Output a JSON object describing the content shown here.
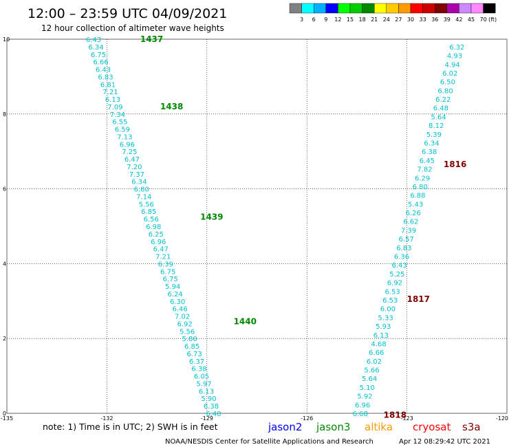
{
  "header": {
    "title": "12:00 – 23:59 UTC 04/09/2021",
    "subtitle": "12 hour collection of altimeter wave heights"
  },
  "legend": {
    "labels": [
      "3",
      "6",
      "9",
      "12",
      "15",
      "18",
      "21",
      "24",
      "27",
      "30",
      "33",
      "36",
      "39",
      "42",
      "45",
      "70"
    ],
    "unit": "(ft)",
    "colors": [
      "#808080",
      "#00ffff",
      "#00b0ff",
      "#0000ff",
      "#00ff00",
      "#00cc00",
      "#008800",
      "#ffff00",
      "#ffcc00",
      "#ff9900",
      "#ff0000",
      "#cc0000",
      "#800000",
      "#aa00aa",
      "#cc88ff",
      "#ff88ff",
      "#000000"
    ]
  },
  "footer": {
    "note": "note:  1) Time is in UTC; 2) SWH is in feet",
    "satellites": [
      {
        "name": "jason2",
        "color": "#0000ff"
      },
      {
        "name": "jason3",
        "color": "#008800"
      },
      {
        "name": "altika",
        "color": "#ff9900"
      },
      {
        "name": "cryosat",
        "color": "#ff0000"
      },
      {
        "name": "s3a",
        "color": "#800000"
      }
    ],
    "credit": "NOAA/NESDIS Center for Satellite Applications and Research",
    "timestamp": "Apr 12 08:29:42 UTC 2021"
  },
  "chart_data": {
    "type": "scatter",
    "xlim": [
      -135,
      -120
    ],
    "ylim": [
      0,
      10
    ],
    "x_ticks": [
      "-135",
      "-132",
      "-129",
      "-126",
      "-123",
      "-120"
    ],
    "y_ticks": [
      "0",
      "2",
      "4",
      "6",
      "8",
      "10"
    ],
    "grid": true,
    "value_color": "#00bfcf",
    "track1": {
      "satellite": "jason3",
      "start": [
        -132.4,
        10.0
      ],
      "end": [
        -128.8,
        0.0
      ],
      "values": [
        "6.43",
        "6.34",
        "6.75",
        "6.66",
        "6.43",
        "6.83",
        "6.81",
        "7.21",
        "6.13",
        "7.09",
        "7.34",
        "6.55",
        "6.59",
        "7.13",
        "6.96",
        "7.25",
        "6.47",
        "7.20",
        "7.37",
        "6.34",
        "6.80",
        "7.14",
        "5.56",
        "6.85",
        "6.56",
        "6.98",
        "6.25",
        "6.96",
        "6.47",
        "7.21",
        "6.39",
        "6.75",
        "6.75",
        "5.94",
        "6.24",
        "6.30",
        "6.46",
        "7.02",
        "6.92",
        "5.56",
        "5.80",
        "6.85",
        "6.73",
        "6.37",
        "6.38",
        "6.05",
        "5.97",
        "6.13",
        "5.90",
        "6.38",
        "6.40"
      ]
    },
    "track2": {
      "satellite": "s3a",
      "start": [
        -121.5,
        9.8
      ],
      "end": [
        -124.4,
        0.0
      ],
      "values": [
        "6.32",
        "4.93",
        "4.94",
        "6.02",
        "6.50",
        "6.80",
        "6.22",
        "6.48",
        "5.64",
        "8.12",
        "5.39",
        "6.34",
        "6.38",
        "6.45",
        "7.82",
        "6.29",
        "6.80",
        "6.88",
        "5.43",
        "6.26",
        "6.62",
        "7.39",
        "6.57",
        "6.83",
        "6.36",
        "6.43",
        "5.25",
        "6.92",
        "6.53",
        "6.53",
        "6.00",
        "5.33",
        "5.93",
        "6.13",
        "4.68",
        "6.66",
        "6.02",
        "5.66",
        "5.64",
        "5.10",
        "5.92",
        "6.96",
        "6.68"
      ]
    },
    "pass_labels": [
      {
        "text": "1437",
        "x": -131.0,
        "y": 10.0,
        "color": "#008800"
      },
      {
        "text": "1438",
        "x": -130.4,
        "y": 8.2,
        "color": "#008800"
      },
      {
        "text": "1439",
        "x": -129.2,
        "y": 5.25,
        "color": "#008800"
      },
      {
        "text": "1440",
        "x": -128.2,
        "y": 2.45,
        "color": "#008800"
      },
      {
        "text": "1816",
        "x": -121.9,
        "y": 6.65,
        "color": "#800000"
      },
      {
        "text": "1817",
        "x": -123.0,
        "y": 3.05,
        "color": "#800000"
      },
      {
        "text": "1818",
        "x": -123.7,
        "y": -0.05,
        "color": "#800000"
      }
    ]
  }
}
